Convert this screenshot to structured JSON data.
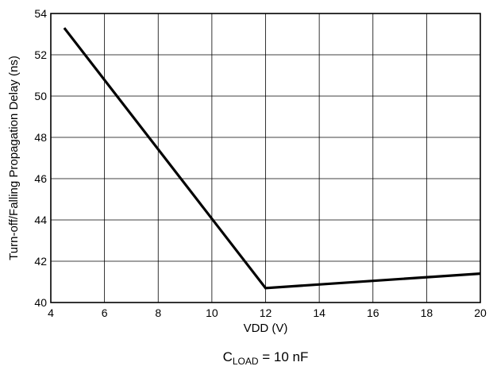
{
  "chart_data": {
    "type": "line",
    "xlabel": "VDD (V)",
    "ylabel": "Turn-off/Falling Propagation Delay (ns)",
    "xlim": [
      4,
      20
    ],
    "ylim": [
      40,
      54
    ],
    "x_ticks": [
      4,
      6,
      8,
      10,
      12,
      14,
      16,
      18,
      20
    ],
    "y_ticks": [
      40,
      42,
      44,
      46,
      48,
      50,
      52,
      54
    ],
    "grid": true,
    "caption": {
      "prefix": "C",
      "subscript": "LOAD",
      "suffix": " = 10 nF"
    },
    "series": [
      {
        "x": [
          4.5,
          12,
          20
        ],
        "y": [
          53.3,
          40.7,
          41.4
        ]
      }
    ]
  },
  "colors": {
    "line": "#000000",
    "grid": "#000000",
    "background": "#ffffff"
  }
}
